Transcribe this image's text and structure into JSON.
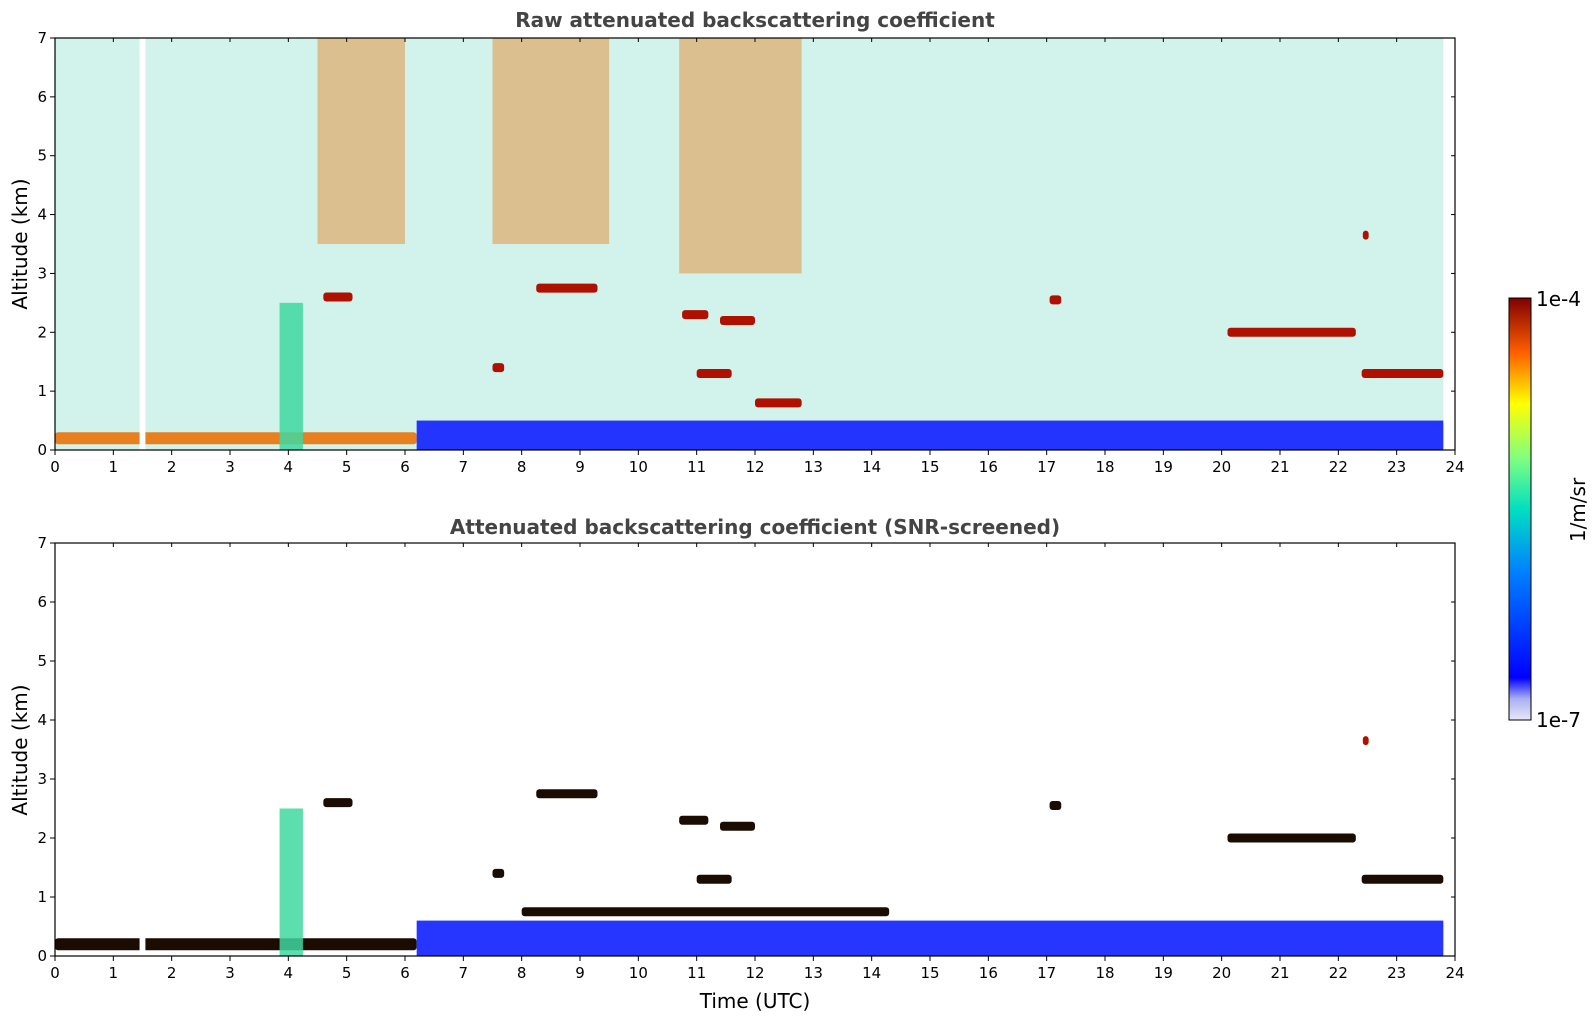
{
  "chart_data": [
    {
      "type": "heatmap",
      "title": "Raw attenuated backscattering coefficient",
      "xlabel": "",
      "ylabel": "Altitude (km)",
      "xlim": [
        0,
        24
      ],
      "ylim": [
        0,
        7
      ],
      "xticks": [
        "0",
        "1",
        "2",
        "3",
        "4",
        "5",
        "6",
        "7",
        "8",
        "9",
        "10",
        "11",
        "12",
        "13",
        "14",
        "15",
        "16",
        "17",
        "18",
        "19",
        "20",
        "21",
        "22",
        "23",
        "24"
      ],
      "yticks": [
        "0",
        "1",
        "2",
        "3",
        "4",
        "5",
        "6",
        "7"
      ],
      "colorscale": "jet-log",
      "features": [
        {
          "kind": "surface_aerosol_layer",
          "t_start": 0.0,
          "t_end": 6.2,
          "alt_km": 0.2,
          "level": "high"
        },
        {
          "kind": "boundary_layer_blue",
          "t_start": 6.2,
          "t_end": 23.8,
          "alt_top_km": 0.5,
          "level": "low"
        },
        {
          "kind": "high_noise_band",
          "t_start": 4.5,
          "t_end": 6.0,
          "alt_km": [
            3.5,
            7.0
          ],
          "level": "high"
        },
        {
          "kind": "high_noise_band",
          "t_start": 7.5,
          "t_end": 9.5,
          "alt_km": [
            3.5,
            7.0
          ],
          "level": "high"
        },
        {
          "kind": "high_noise_band",
          "t_start": 10.7,
          "t_end": 12.8,
          "alt_km": [
            3.0,
            7.0
          ],
          "level": "high"
        },
        {
          "kind": "cloud",
          "t_start": 8.25,
          "t_end": 9.3,
          "alt_km": 2.75,
          "level": "very_high"
        },
        {
          "kind": "cloud",
          "t_start": 10.75,
          "t_end": 11.2,
          "alt_km": 2.3,
          "level": "very_high"
        },
        {
          "kind": "cloud",
          "t_start": 11.4,
          "t_end": 12.0,
          "alt_km": 2.2,
          "level": "very_high"
        },
        {
          "kind": "cloud",
          "t_start": 11.0,
          "t_end": 11.6,
          "alt_km": 1.3,
          "level": "very_high"
        },
        {
          "kind": "cloud",
          "t_start": 12.0,
          "t_end": 12.8,
          "alt_km": 0.8,
          "level": "very_high"
        },
        {
          "kind": "cloud",
          "t_start": 4.6,
          "t_end": 5.1,
          "alt_km": 2.6,
          "level": "very_high"
        },
        {
          "kind": "cloud",
          "t_start": 7.5,
          "t_end": 7.7,
          "alt_km": 1.4,
          "level": "very_high"
        },
        {
          "kind": "cloud",
          "t_start": 17.05,
          "t_end": 17.25,
          "alt_km": 2.55,
          "level": "very_high"
        },
        {
          "kind": "cloud",
          "t_start": 20.1,
          "t_end": 22.3,
          "alt_km": 2.0,
          "level": "very_high"
        },
        {
          "kind": "cloud",
          "t_start": 22.4,
          "t_end": 23.8,
          "alt_km": 1.3,
          "level": "very_high"
        },
        {
          "kind": "cloud",
          "t_start": 22.42,
          "t_end": 22.52,
          "alt_km": 3.65,
          "level": "very_high"
        },
        {
          "kind": "plume",
          "t_start": 3.85,
          "t_end": 4.25,
          "alt_km": [
            0.0,
            2.5
          ],
          "level": "mid"
        },
        {
          "kind": "data_gap",
          "t_start": 1.45,
          "t_end": 1.55
        }
      ]
    },
    {
      "type": "heatmap",
      "title": "Attenuated backscattering coefficient (SNR-screened)",
      "xlabel": "Time (UTC)",
      "ylabel": "Altitude (km)",
      "xlim": [
        0,
        24
      ],
      "ylim": [
        0,
        7
      ],
      "xticks": [
        "0",
        "1",
        "2",
        "3",
        "4",
        "5",
        "6",
        "7",
        "8",
        "9",
        "10",
        "11",
        "12",
        "13",
        "14",
        "15",
        "16",
        "17",
        "18",
        "19",
        "20",
        "21",
        "22",
        "23",
        "24"
      ],
      "yticks": [
        "0",
        "1",
        "2",
        "3",
        "4",
        "5",
        "6",
        "7"
      ],
      "colorscale": "jet-log",
      "features": [
        {
          "kind": "surface_aerosol_layer",
          "t_start": 0.0,
          "t_end": 6.2,
          "alt_km": 0.2,
          "level": "saturated"
        },
        {
          "kind": "boundary_layer_blue",
          "t_start": 6.2,
          "t_end": 23.8,
          "alt_top_km": 0.6,
          "level": "low"
        },
        {
          "kind": "cloud",
          "t_start": 8.25,
          "t_end": 9.3,
          "alt_km": 2.75,
          "level": "saturated"
        },
        {
          "kind": "cloud",
          "t_start": 10.7,
          "t_end": 11.2,
          "alt_km": 2.3,
          "level": "saturated"
        },
        {
          "kind": "cloud",
          "t_start": 11.4,
          "t_end": 12.0,
          "alt_km": 2.2,
          "level": "saturated"
        },
        {
          "kind": "cloud",
          "t_start": 11.0,
          "t_end": 11.6,
          "alt_km": 1.3,
          "level": "saturated"
        },
        {
          "kind": "cloud",
          "t_start": 8.0,
          "t_end": 14.3,
          "alt_km": 0.75,
          "level": "saturated"
        },
        {
          "kind": "cloud",
          "t_start": 4.6,
          "t_end": 5.1,
          "alt_km": 2.6,
          "level": "saturated"
        },
        {
          "kind": "cloud",
          "t_start": 7.5,
          "t_end": 7.7,
          "alt_km": 1.4,
          "level": "saturated"
        },
        {
          "kind": "cloud",
          "t_start": 17.05,
          "t_end": 17.25,
          "alt_km": 2.55,
          "level": "saturated"
        },
        {
          "kind": "cloud",
          "t_start": 20.1,
          "t_end": 22.3,
          "alt_km": 2.0,
          "level": "saturated"
        },
        {
          "kind": "cloud",
          "t_start": 22.4,
          "t_end": 23.8,
          "alt_km": 1.3,
          "level": "saturated"
        },
        {
          "kind": "cloud",
          "t_start": 22.42,
          "t_end": 22.52,
          "alt_km": 3.65,
          "level": "very_high"
        },
        {
          "kind": "plume",
          "t_start": 3.85,
          "t_end": 4.25,
          "alt_km": [
            0.0,
            2.5
          ],
          "level": "mid"
        },
        {
          "kind": "data_gap",
          "t_start": 1.45,
          "t_end": 1.55
        }
      ]
    }
  ],
  "colorbar": {
    "label": "1/m/sr",
    "max_label": "1e-4",
    "min_label": "1e-7",
    "range": [
      1e-07,
      0.0001
    ],
    "scale": "log"
  }
}
